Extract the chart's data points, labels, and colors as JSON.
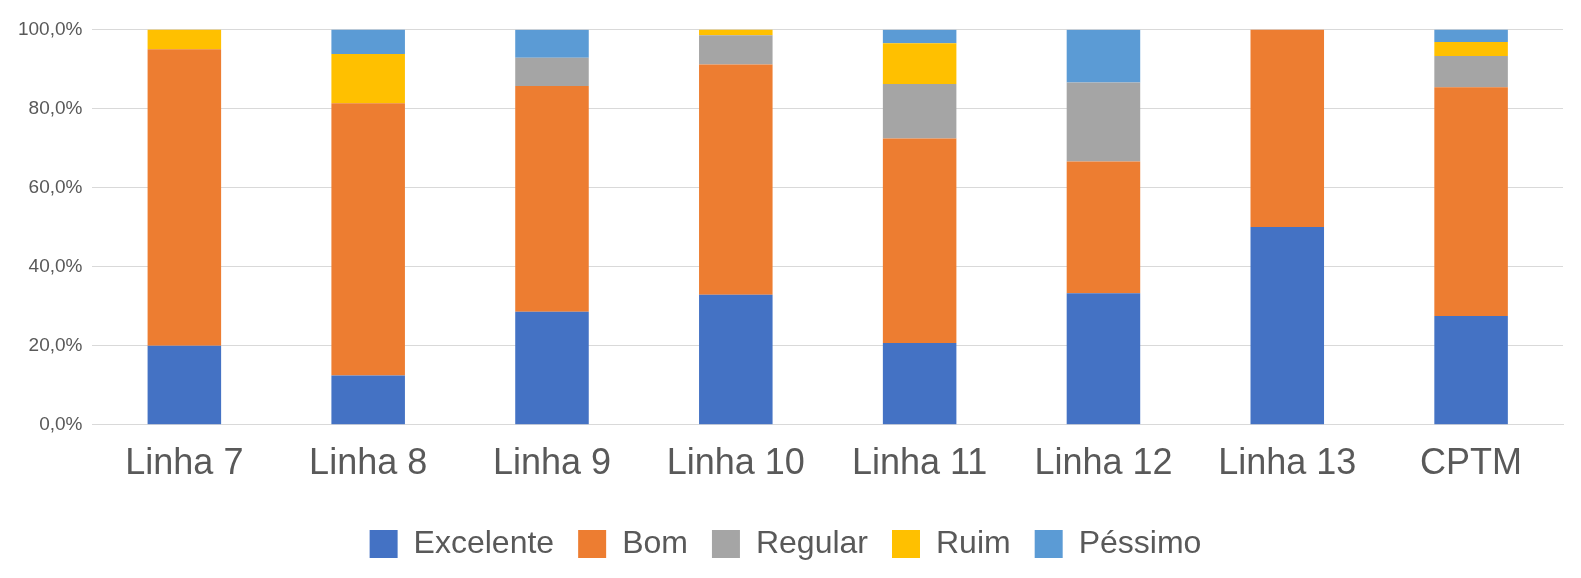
{
  "chart_data": {
    "type": "bar",
    "stacked": true,
    "categories": [
      "Linha 7",
      "Linha 8",
      "Linha 9",
      "Linha 10",
      "Linha 11",
      "Linha 12",
      "Linha 13",
      "CPTM"
    ],
    "series": [
      {
        "name": "Excelente",
        "color": "#4472c4",
        "values": [
          20,
          12.5,
          28.6,
          32.9,
          20.7,
          33.3,
          50,
          27.5
        ]
      },
      {
        "name": "Bom",
        "color": "#ed7d31",
        "values": [
          75,
          68.8,
          57.1,
          58.2,
          51.7,
          33.3,
          50,
          57.9
        ]
      },
      {
        "name": "Regular",
        "color": "#a5a5a5",
        "values": [
          0,
          0,
          7.1,
          7.4,
          13.8,
          20,
          0,
          7.9
        ]
      },
      {
        "name": "Ruim",
        "color": "#ffc000",
        "values": [
          5,
          12.5,
          0,
          1.5,
          10.3,
          0,
          0,
          3.5
        ]
      },
      {
        "name": "Péssimo",
        "color": "#5b9bd5",
        "values": [
          0,
          6.2,
          7.1,
          0,
          3.4,
          13.3,
          0,
          3.2
        ]
      }
    ],
    "ylim": [
      0,
      100
    ],
    "yticks": [
      {
        "value": 0,
        "label": "0,0%"
      },
      {
        "value": 20,
        "label": "20,0%"
      },
      {
        "value": 40,
        "label": "40,0%"
      },
      {
        "value": 60,
        "label": "60,0%"
      },
      {
        "value": 80,
        "label": "80,0%"
      },
      {
        "value": 100,
        "label": "100,0%"
      }
    ],
    "grid": "y",
    "legend": "bottom"
  }
}
